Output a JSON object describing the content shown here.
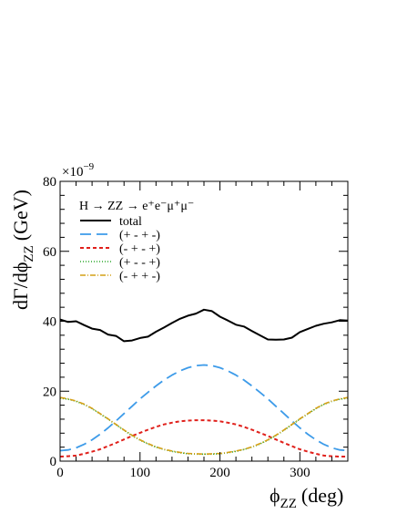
{
  "chart_data": {
    "type": "line",
    "title": "",
    "xlabel": "ϕ",
    "xlabel_sub": "ZZ",
    "xlabel_unit": "(deg)",
    "ylabel": "dΓ/dϕ",
    "ylabel_sub": "ZZ",
    "ylabel_unit": "(GeV)",
    "y_exponent": "×10",
    "y_exponent_power": "−9",
    "xlim": [
      0,
      360
    ],
    "ylim": [
      0,
      80
    ],
    "xticks": [
      0,
      100,
      200,
      300
    ],
    "yticks": [
      0,
      20,
      40,
      60,
      80
    ],
    "grid": false,
    "legend_position": "top-left",
    "legend_header": "H → ZZ → e⁺e⁻μ⁺μ⁻",
    "x": [
      0,
      10,
      20,
      30,
      40,
      50,
      60,
      70,
      80,
      90,
      100,
      110,
      120,
      130,
      140,
      150,
      160,
      170,
      180,
      190,
      200,
      210,
      220,
      230,
      240,
      250,
      260,
      270,
      280,
      290,
      300,
      310,
      320,
      330,
      340,
      350,
      360
    ],
    "series": [
      {
        "name": "total",
        "color": "#000000",
        "dash": "",
        "width": 2,
        "values": [
          40.5,
          39.8,
          40.0,
          38.9,
          37.9,
          37.5,
          36.2,
          35.8,
          34.3,
          34.5,
          35.2,
          35.6,
          37.0,
          38.2,
          39.5,
          40.7,
          41.6,
          42.2,
          43.3,
          42.9,
          41.3,
          40.2,
          39.0,
          38.5,
          37.2,
          36.0,
          34.8,
          34.7,
          34.8,
          35.3,
          36.9,
          37.8,
          38.7,
          39.3,
          39.7,
          40.3,
          40.2
        ]
      },
      {
        "name": "(+ - + -)",
        "color": "#3d9be9",
        "dash": "12,6",
        "width": 1.8,
        "values": [
          3.0,
          3.2,
          3.8,
          4.8,
          6.1,
          7.7,
          9.5,
          11.5,
          13.6,
          15.7,
          17.8,
          19.7,
          21.5,
          23.2,
          24.6,
          25.8,
          26.7,
          27.3,
          27.5,
          27.3,
          26.7,
          25.8,
          24.6,
          23.2,
          21.5,
          19.7,
          17.8,
          15.7,
          13.6,
          11.5,
          9.5,
          7.7,
          6.1,
          4.8,
          3.8,
          3.2,
          3.0
        ]
      },
      {
        "name": "(- + - +)",
        "color": "#e0201b",
        "dash": "4,3",
        "width": 2,
        "values": [
          1.3,
          1.4,
          1.6,
          2.1,
          2.7,
          3.4,
          4.3,
          5.2,
          6.2,
          7.2,
          8.1,
          9.0,
          9.8,
          10.5,
          11.0,
          11.4,
          11.6,
          11.7,
          11.7,
          11.6,
          11.4,
          11.0,
          10.5,
          9.8,
          9.0,
          8.1,
          7.2,
          6.2,
          5.2,
          4.3,
          3.4,
          2.7,
          2.1,
          1.6,
          1.4,
          1.3,
          1.3
        ]
      },
      {
        "name": "(+ - - +)",
        "color": "#2ea82e",
        "dash": "1,2",
        "width": 1.6,
        "values": [
          18.0,
          17.7,
          17.1,
          16.2,
          15.0,
          13.5,
          12.0,
          10.4,
          8.8,
          7.3,
          6.0,
          4.9,
          4.0,
          3.3,
          2.8,
          2.4,
          2.1,
          2.0,
          2.0,
          2.0,
          2.1,
          2.4,
          2.8,
          3.3,
          4.0,
          4.9,
          6.0,
          7.3,
          8.8,
          10.4,
          12.0,
          13.5,
          15.0,
          16.2,
          17.1,
          17.7,
          18.0
        ]
      },
      {
        "name": "(- + + -)",
        "color": "#d4a017",
        "dash": "6,2,1,2",
        "width": 1.6,
        "values": [
          18.2,
          17.8,
          17.2,
          16.3,
          15.1,
          13.6,
          12.1,
          10.5,
          8.9,
          7.4,
          6.1,
          5.0,
          4.1,
          3.4,
          2.9,
          2.5,
          2.2,
          2.1,
          2.0,
          2.1,
          2.2,
          2.5,
          2.9,
          3.4,
          4.1,
          5.0,
          6.1,
          7.4,
          8.9,
          10.5,
          12.1,
          13.6,
          15.1,
          16.3,
          17.2,
          17.8,
          18.2
        ]
      }
    ]
  }
}
